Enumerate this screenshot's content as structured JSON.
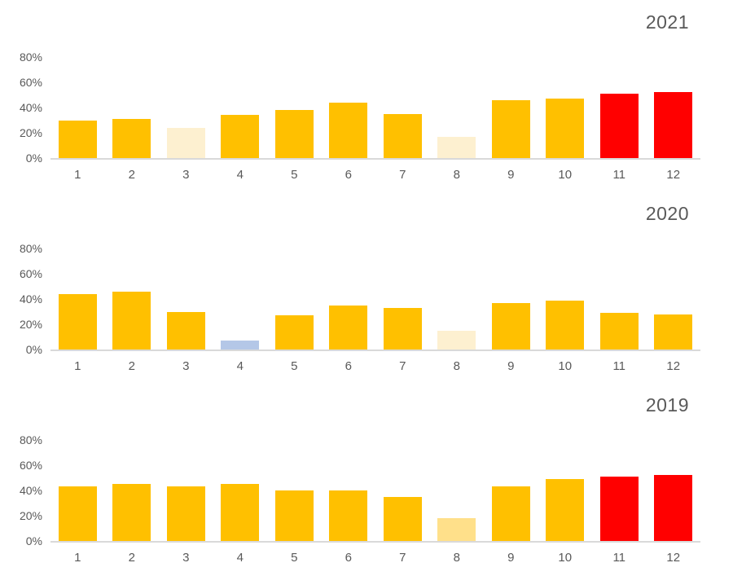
{
  "palette": {
    "gold": "#FFC000",
    "cream": "#FDF0D0",
    "lightgold": "#FFE08A",
    "blue": "#B4C7E7",
    "red": "#FF0000",
    "text": "#595959",
    "axis_line": "#D9D9D9"
  },
  "chart_data": [
    {
      "type": "bar",
      "title": "2021",
      "categories": [
        "1",
        "2",
        "3",
        "4",
        "5",
        "6",
        "7",
        "8",
        "9",
        "10",
        "11",
        "12"
      ],
      "values": [
        30,
        31,
        24,
        34,
        38,
        44,
        35,
        17,
        46,
        47,
        51,
        52
      ],
      "bar_colors": [
        "gold",
        "gold",
        "cream",
        "gold",
        "gold",
        "gold",
        "gold",
        "cream",
        "gold",
        "gold",
        "red",
        "red"
      ],
      "y_ticks": [
        "0%",
        "20%",
        "40%",
        "60%",
        "80%"
      ],
      "ylim": [
        0,
        80
      ],
      "xlabel": "",
      "ylabel": "",
      "grid": false,
      "legend": "none"
    },
    {
      "type": "bar",
      "title": "2020",
      "categories": [
        "1",
        "2",
        "3",
        "4",
        "5",
        "6",
        "7",
        "8",
        "9",
        "10",
        "11",
        "12"
      ],
      "values": [
        44,
        46,
        30,
        7,
        27,
        35,
        33,
        15,
        37,
        39,
        29,
        28
      ],
      "bar_colors": [
        "gold",
        "gold",
        "gold",
        "blue",
        "gold",
        "gold",
        "gold",
        "cream",
        "gold",
        "gold",
        "gold",
        "gold"
      ],
      "y_ticks": [
        "0%",
        "20%",
        "40%",
        "60%",
        "80%"
      ],
      "ylim": [
        0,
        80
      ],
      "xlabel": "",
      "ylabel": "",
      "grid": false,
      "legend": "none"
    },
    {
      "type": "bar",
      "title": "2019",
      "categories": [
        "1",
        "2",
        "3",
        "4",
        "5",
        "6",
        "7",
        "8",
        "9",
        "10",
        "11",
        "12"
      ],
      "values": [
        43,
        45,
        43,
        45,
        40,
        40,
        35,
        18,
        43,
        49,
        51,
        52
      ],
      "bar_colors": [
        "gold",
        "gold",
        "gold",
        "gold",
        "gold",
        "gold",
        "gold",
        "lightgold",
        "gold",
        "gold",
        "red",
        "red"
      ],
      "y_ticks": [
        "0%",
        "20%",
        "40%",
        "60%",
        "80%"
      ],
      "ylim": [
        0,
        80
      ],
      "xlabel": "",
      "ylabel": "",
      "grid": false,
      "legend": "none"
    }
  ]
}
